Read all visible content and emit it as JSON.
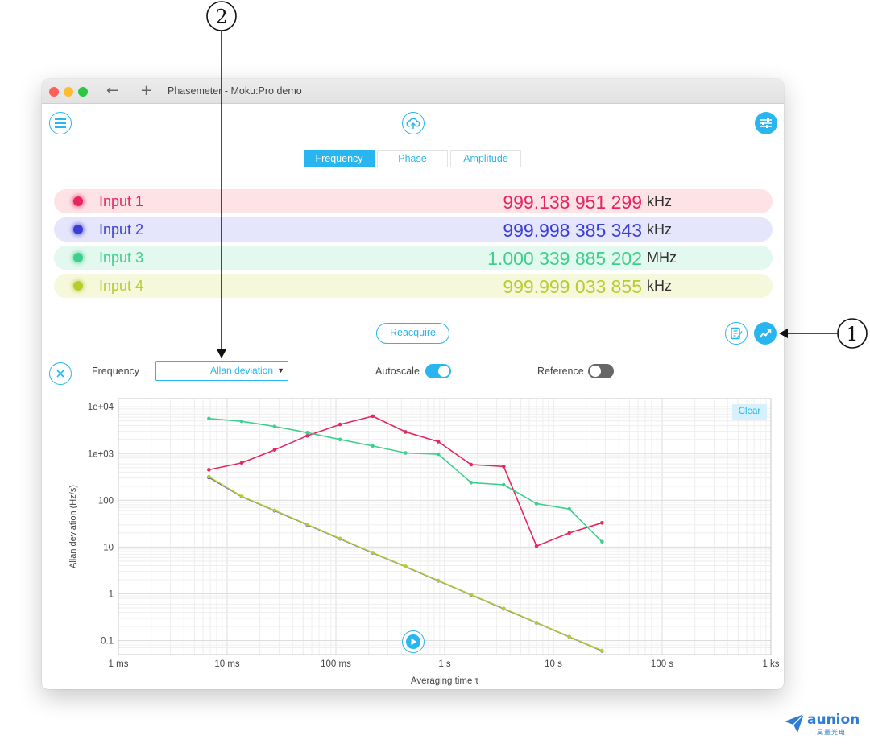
{
  "window": {
    "title": "Phasemeter - Moku:Pro demo",
    "back": "←",
    "new_tab": "+"
  },
  "tabs": [
    {
      "label": "Frequency",
      "active": true
    },
    {
      "label": "Phase",
      "active": false
    },
    {
      "label": "Amplitude",
      "active": false
    }
  ],
  "inputs": [
    {
      "label": "Input 1",
      "value": "999.138 951 299",
      "unit": "kHz",
      "color": "#e8265e",
      "bg": "#fde2e6"
    },
    {
      "label": "Input 2",
      "value": "999.998 385 343",
      "unit": "kHz",
      "color": "#3b3fd6",
      "bg": "#e5e5fb"
    },
    {
      "label": "Input 3",
      "value": "1.000 339 885 202",
      "unit": "MHz",
      "color": "#3ecf8e",
      "bg": "#e3f8ee"
    },
    {
      "label": "Input 4",
      "value": "999.999 033 855",
      "unit": "kHz",
      "color": "#b8cc2e",
      "bg": "#f6f8dc"
    }
  ],
  "reacquire_label": "Reacquire",
  "controls": {
    "quantity_label": "Frequency",
    "select_value": "Allan deviation",
    "autoscale_label": "Autoscale",
    "autoscale_on": true,
    "reference_label": "Reference",
    "reference_on": false,
    "clear_label": "Clear"
  },
  "icons": {
    "menu": "menu-icon",
    "cloud": "cloud-upload-icon",
    "settings": "settings-sliders-icon",
    "close": "close-icon",
    "log": "data-log-icon",
    "chart": "chart-icon",
    "play": "play-icon"
  },
  "annotations": {
    "callout_1": "1",
    "callout_2": "2"
  },
  "logo": {
    "name": "aunion",
    "sub": "昊量光电"
  },
  "chart_data": {
    "type": "line",
    "xscale": "log",
    "yscale": "log",
    "xlabel": "Averaging time τ",
    "ylabel": "Allan deviation (Hz/s)",
    "xlim": [
      0.001,
      1000
    ],
    "ylim": [
      0.05,
      15000
    ],
    "x_ticks": [
      {
        "v": 0.001,
        "label": "1 ms"
      },
      {
        "v": 0.01,
        "label": "10 ms"
      },
      {
        "v": 0.1,
        "label": "100 ms"
      },
      {
        "v": 1,
        "label": "1 s"
      },
      {
        "v": 10,
        "label": "10 s"
      },
      {
        "v": 100,
        "label": "100 s"
      },
      {
        "v": 1000,
        "label": "1 ks"
      }
    ],
    "y_ticks": [
      {
        "v": 0.1,
        "label": "0.1"
      },
      {
        "v": 1,
        "label": "1"
      },
      {
        "v": 10,
        "label": "10"
      },
      {
        "v": 100,
        "label": "100"
      },
      {
        "v": 1000,
        "label": "1e+03"
      },
      {
        "v": 10000,
        "label": "1e+04"
      }
    ],
    "grid": true,
    "series": [
      {
        "color": "#e8265e",
        "x": [
          0.0068,
          0.0136,
          0.0273,
          0.0546,
          0.109,
          0.218,
          0.437,
          0.874,
          1.75,
          3.49,
          6.99,
          14.0,
          28.0
        ],
        "y": [
          450,
          630,
          1200,
          2400,
          4200,
          6300,
          2900,
          1800,
          580,
          530,
          10.5,
          20,
          33
        ]
      },
      {
        "color": "#3ecf8e",
        "x": [
          0.0068,
          0.0136,
          0.0273,
          0.0546,
          0.109,
          0.218,
          0.437,
          0.874,
          1.75,
          3.49,
          6.99,
          14.0,
          28.0
        ],
        "y": [
          5600,
          4900,
          3800,
          2800,
          2000,
          1450,
          1030,
          970,
          240,
          215,
          85,
          65,
          13
        ]
      },
      {
        "color": "#3b3fd6",
        "x": [
          0.0068,
          0.0136,
          0.0273,
          0.0546,
          0.109,
          0.218,
          0.437,
          0.874,
          1.75,
          3.49,
          6.99,
          14.0,
          28.0
        ],
        "y": [
          310,
          120,
          60,
          30,
          15,
          7.5,
          3.8,
          1.9,
          0.95,
          0.48,
          0.24,
          0.12,
          0.06
        ]
      },
      {
        "color": "#b8cc2e",
        "x": [
          0.0068,
          0.0136,
          0.0273,
          0.0546,
          0.109,
          0.218,
          0.437,
          0.874,
          1.75,
          3.49,
          6.99,
          14.0,
          28.0
        ],
        "y": [
          320,
          122,
          61,
          30.5,
          15.2,
          7.6,
          3.85,
          1.92,
          0.96,
          0.485,
          0.242,
          0.121,
          0.061
        ]
      }
    ]
  }
}
